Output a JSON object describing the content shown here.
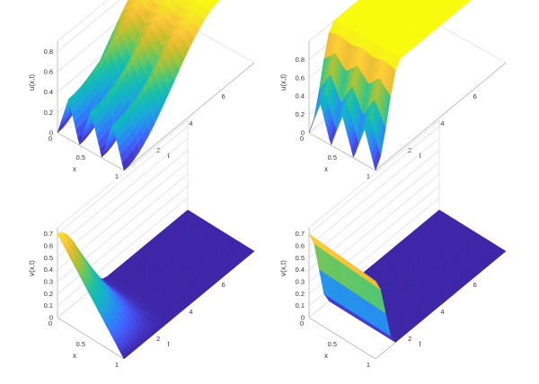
{
  "colormap": [
    "#3e26a8",
    "#4745e0",
    "#4066fe",
    "#2b88f5",
    "#1ca5db",
    "#11b7c1",
    "#21c19e",
    "#5bc76c",
    "#9bc43e",
    "#d5bd2b",
    "#fbc439",
    "#f5e525",
    "#f9fb0e"
  ],
  "chart_data": [
    {
      "type": "surface",
      "xlabel": "x",
      "ylabel": "t",
      "zlabel": "u(x,t)",
      "xlim": [
        0,
        1
      ],
      "ylim": [
        0,
        8
      ],
      "zlim": [
        0,
        0.9
      ],
      "xticks": [
        "0",
        "0.5",
        "1"
      ],
      "yticks": [
        "2",
        "4",
        "6"
      ],
      "zticks": [
        "0",
        "0.2",
        "0.4",
        "0.6",
        "0.8"
      ],
      "initial_profile": {
        "x": [
          0,
          0.17,
          0.33,
          0.5,
          0.67,
          0.83,
          1
        ],
        "z": [
          0,
          0.4,
          0,
          0.4,
          0,
          0.4,
          0
        ]
      },
      "steady_value": 0.9,
      "settle_time": 6
    },
    {
      "type": "surface",
      "xlabel": "x",
      "ylabel": "t",
      "zlabel": "u(x,t)",
      "xlim": [
        0,
        1
      ],
      "ylim": [
        0,
        8
      ],
      "zlim": [
        0,
        1
      ],
      "xticks": [
        "0",
        "0.5",
        "1"
      ],
      "yticks": [
        "2",
        "4",
        "6"
      ],
      "zticks": [
        "0",
        "0.2",
        "0.4",
        "0.6",
        "0.8"
      ],
      "initial_profile": {
        "x": [
          0,
          0.17,
          0.33,
          0.5,
          0.67,
          0.83,
          1
        ],
        "z": [
          0,
          0.4,
          0,
          0.4,
          0,
          0.4,
          0
        ]
      },
      "steady_value": 1.0,
      "settle_time": 1.5
    },
    {
      "type": "surface",
      "xlabel": "x",
      "ylabel": "t",
      "zlabel": "v(x,t)",
      "xlim": [
        0,
        1
      ],
      "ylim": [
        0,
        8
      ],
      "zlim": [
        0,
        0.75
      ],
      "xticks": [
        "0",
        "0.5",
        "1"
      ],
      "yticks": [
        "2",
        "4",
        "6"
      ],
      "zticks": [
        "0",
        "0.1",
        "0.2",
        "0.3",
        "0.4",
        "0.5",
        "0.6",
        "0.7"
      ],
      "initial_profile": {
        "x": [
          0,
          1
        ],
        "z": [
          0.7,
          0
        ]
      },
      "steady_value": 0.0,
      "settle_time": 3
    },
    {
      "type": "surface",
      "xlabel": "x",
      "ylabel": "t",
      "zlabel": "v(x,t)",
      "xlim": [
        0,
        1
      ],
      "ylim": [
        0,
        8
      ],
      "zlim": [
        0,
        0.75
      ],
      "xticks": [
        "0",
        "0.5",
        "1"
      ],
      "yticks": [
        "2",
        "4",
        "6"
      ],
      "zticks": [
        "0",
        "0.1",
        "0.2",
        "0.3",
        "0.4",
        "0.5",
        "0.6",
        "0.7"
      ],
      "initial_profile": {
        "x": [
          0,
          1
        ],
        "z": [
          0.7,
          0.65
        ]
      },
      "steady_value": 0.0,
      "settle_time": 1.2
    }
  ]
}
